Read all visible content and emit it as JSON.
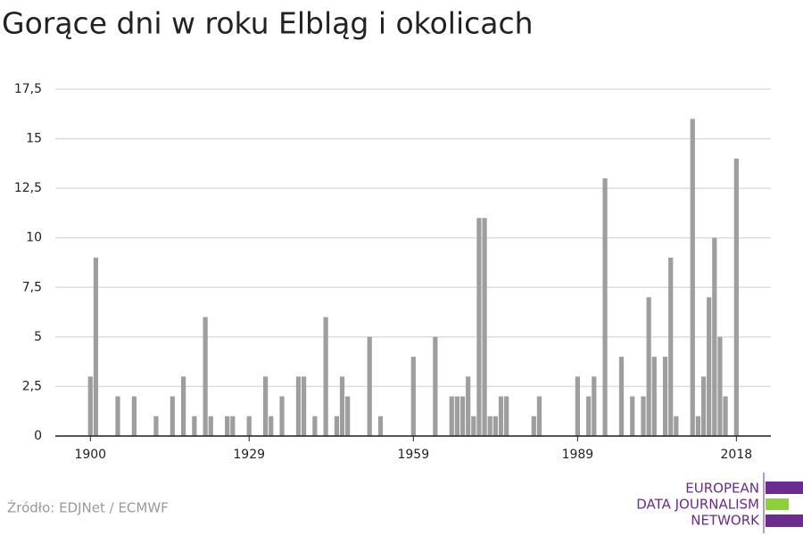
{
  "chart_data": {
    "type": "bar",
    "title": "Gorące dni w roku Elbląg i okolicach",
    "x": [
      1900,
      1901,
      1905,
      1908,
      1912,
      1915,
      1917,
      1919,
      1921,
      1922,
      1925,
      1926,
      1929,
      1932,
      1933,
      1935,
      1938,
      1939,
      1941,
      1943,
      1945,
      1946,
      1947,
      1951,
      1953,
      1959,
      1963,
      1966,
      1967,
      1968,
      1969,
      1970,
      1971,
      1972,
      1973,
      1974,
      1975,
      1976,
      1981,
      1982,
      1989,
      1991,
      1992,
      1994,
      1997,
      1999,
      2001,
      2002,
      2003,
      2005,
      2006,
      2007,
      2010,
      2011,
      2012,
      2013,
      2014,
      2015,
      2016,
      2018
    ],
    "values": [
      3,
      9,
      2,
      2,
      1,
      2,
      3,
      1,
      6,
      1,
      1,
      1,
      1,
      3,
      1,
      2,
      3,
      3,
      1,
      6,
      1,
      3,
      2,
      5,
      1,
      4,
      5,
      2,
      2,
      2,
      3,
      1,
      11,
      11,
      1,
      1,
      2,
      2,
      1,
      2,
      3,
      2,
      3,
      13,
      4,
      2,
      2,
      7,
      4,
      4,
      9,
      1,
      16,
      1,
      3,
      7,
      10,
      5,
      2,
      14
    ],
    "color": "#9e9e9e",
    "xlim": [
      1893.6,
      2024.3
    ],
    "xticks": [
      1900,
      1929,
      1959,
      1989,
      2018
    ],
    "ylim": [
      0,
      17.5
    ],
    "yticks": [
      0,
      {
        "value": 2.5,
        "label": "2,5"
      },
      5,
      {
        "value": 7.5,
        "label": "7,5"
      },
      10,
      {
        "value": 12.5,
        "label": "12,5"
      },
      15,
      {
        "value": 17.5,
        "label": "17,5"
      }
    ],
    "grid": true,
    "source": "Źródło: EDJNet / ECMWF"
  },
  "logo": {
    "lines": [
      "EUROPEAN",
      "DATA JOURNALISM",
      "NETWORK"
    ]
  }
}
